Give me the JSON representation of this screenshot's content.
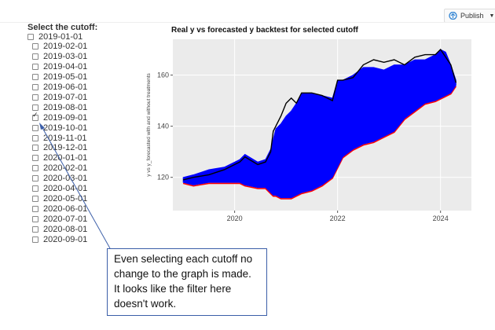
{
  "header": {
    "publish_label": "Publish",
    "publish_icon": "publish-icon",
    "dropdown_icon": "caret-down-icon"
  },
  "filter": {
    "title": "Select the cutoff:",
    "options": [
      {
        "label": "2019-01-01",
        "checked": false
      },
      {
        "label": "2019-02-01",
        "checked": false
      },
      {
        "label": "2019-03-01",
        "checked": false
      },
      {
        "label": "2019-04-01",
        "checked": false
      },
      {
        "label": "2019-05-01",
        "checked": false
      },
      {
        "label": "2019-06-01",
        "checked": false
      },
      {
        "label": "2019-07-01",
        "checked": false
      },
      {
        "label": "2019-08-01",
        "checked": false
      },
      {
        "label": "2019-09-01",
        "checked": true
      },
      {
        "label": "2019-10-01",
        "checked": false
      },
      {
        "label": "2019-11-01",
        "checked": false
      },
      {
        "label": "2019-12-01",
        "checked": false
      },
      {
        "label": "2020-01-01",
        "checked": false
      },
      {
        "label": "2020-02-01",
        "checked": false
      },
      {
        "label": "2020-03-01",
        "checked": false
      },
      {
        "label": "2020-04-01",
        "checked": false
      },
      {
        "label": "2020-05-01",
        "checked": false
      },
      {
        "label": "2020-06-01",
        "checked": false
      },
      {
        "label": "2020-07-01",
        "checked": false
      },
      {
        "label": "2020-08-01",
        "checked": false
      },
      {
        "label": "2020-09-01",
        "checked": false
      }
    ]
  },
  "chart_data": {
    "type": "line",
    "title": "Real y vs forecasted y backtest for selected cutoff",
    "ylabel": "y vs y_forecasted with and without treatments",
    "xlabel": "",
    "xlim": [
      2018.8,
      2024.6
    ],
    "ylim": [
      107,
      174
    ],
    "xticks": [
      2020,
      2022,
      2024
    ],
    "xtick_labels": [
      "2020",
      "2022",
      "2024"
    ],
    "yticks": [
      120,
      140,
      160
    ],
    "ytick_labels": [
      "120",
      "140",
      "160"
    ],
    "grid": true,
    "colors": {
      "real": "#000000",
      "forecast_band": "#0000ff",
      "treatment": "#ff0000",
      "panel": "#ebebeb"
    },
    "series": [
      {
        "role": "real",
        "x": [
          2019.0,
          2019.2,
          2019.5,
          2019.8,
          2020.1,
          2020.2,
          2020.45,
          2020.6,
          2020.7,
          2020.75,
          2020.8,
          2020.9,
          2021.0,
          2021.1,
          2021.2,
          2021.3,
          2021.5,
          2021.7,
          2021.9,
          2022.0,
          2022.1,
          2022.3,
          2022.5,
          2022.7,
          2022.9,
          2023.1,
          2023.3,
          2023.5,
          2023.7,
          2023.9,
          2024.0,
          2024.1,
          2024.2,
          2024.3
        ],
        "y": [
          119,
          120,
          121,
          123,
          126,
          128,
          125,
          126,
          130,
          138,
          140,
          144,
          149,
          151,
          149,
          153,
          153,
          152,
          150,
          158,
          158,
          159,
          164,
          166,
          165,
          166,
          164,
          167,
          168,
          168,
          170,
          167,
          164,
          157
        ]
      },
      {
        "role": "forecast_upper",
        "x": [
          2019.0,
          2019.2,
          2019.5,
          2019.8,
          2020.1,
          2020.2,
          2020.45,
          2020.6,
          2020.7,
          2020.75,
          2020.8,
          2020.9,
          2021.0,
          2021.1,
          2021.2,
          2021.3,
          2021.5,
          2021.7,
          2021.9,
          2022.0,
          2022.1,
          2022.3,
          2022.5,
          2022.7,
          2022.9,
          2023.1,
          2023.3,
          2023.5,
          2023.7,
          2023.9,
          2024.0,
          2024.1,
          2024.2,
          2024.3
        ],
        "y": [
          120,
          121,
          123,
          124,
          127,
          129,
          126,
          127,
          131,
          135,
          139,
          141,
          144,
          146,
          149,
          153,
          153,
          152,
          151,
          158,
          158,
          160,
          163,
          163,
          162,
          164,
          164,
          166,
          166,
          168,
          170,
          169,
          164,
          158
        ]
      },
      {
        "role": "forecast_lower",
        "x": [
          2019.0,
          2019.2,
          2019.5,
          2019.8,
          2020.1,
          2020.2,
          2020.45,
          2020.6,
          2020.7,
          2020.75,
          2020.8,
          2020.9,
          2021.0,
          2021.1,
          2021.2,
          2021.3,
          2021.5,
          2021.7,
          2021.9,
          2022.0,
          2022.1,
          2022.3,
          2022.5,
          2022.7,
          2022.9,
          2023.1,
          2023.3,
          2023.5,
          2023.7,
          2023.9,
          2024.0,
          2024.1,
          2024.2,
          2024.3
        ],
        "y": [
          118,
          117,
          118,
          118,
          118,
          117,
          116,
          116,
          114,
          113,
          113,
          112,
          112,
          112,
          113,
          114,
          115,
          117,
          120,
          124,
          128,
          131,
          133,
          134,
          136,
          138,
          143,
          146,
          149,
          150,
          151,
          152,
          153,
          156
        ]
      }
    ]
  },
  "annotation": {
    "text": "Even selecting each cutoff no change to the graph is made. It looks like the filter here doesn't work."
  }
}
